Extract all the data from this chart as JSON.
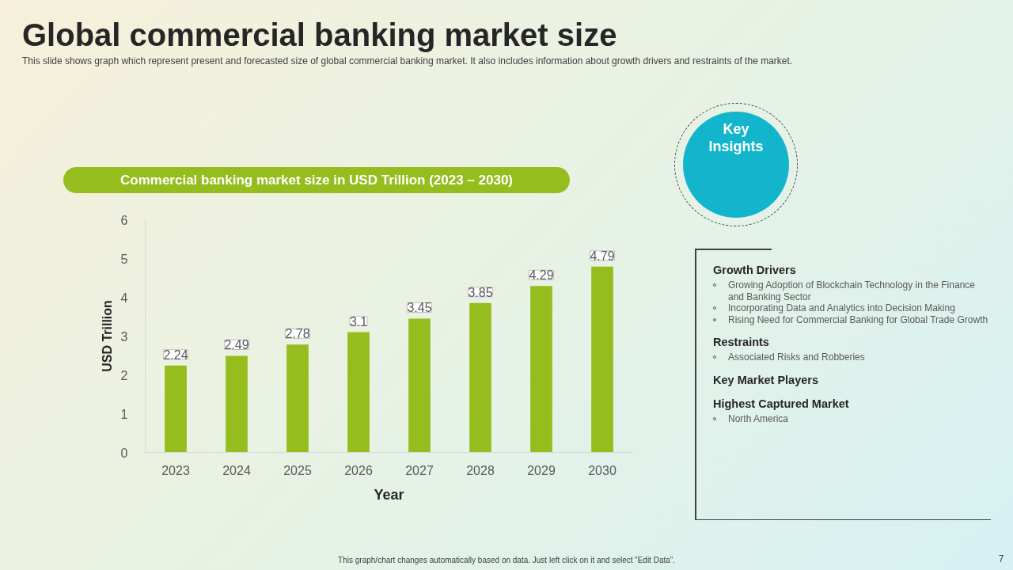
{
  "chart_data": {
    "type": "bar",
    "title": "Global commercial banking market size",
    "subtitle": "This slide shows graph which represent present and forecasted size of global commercial banking market. It also includes information about growth drivers and restraints of the market.",
    "xlabel": "Year",
    "ylabel": "USD Trillion",
    "categories": [
      "2023",
      "2024",
      "2025",
      "2026",
      "2027",
      "2028",
      "2029",
      "2030"
    ],
    "values": [
      2.24,
      2.49,
      2.78,
      3.1,
      3.45,
      3.85,
      4.29,
      4.79
    ],
    "color": "#95bd1d",
    "ylim": [
      0,
      6
    ],
    "yticks": [
      0,
      1,
      2,
      3,
      4,
      5,
      6
    ],
    "grid": false,
    "data_labels": true,
    "annotations": [
      "Commercial banking market size in USD Trillion (2023 – 2030)",
      "Key Insights",
      "Growth Drivers",
      "Growing Adoption of Blockchain Technology in the Finance and Banking Sector",
      "Incorporating Data and Analytics into Decision Making",
      "Rising Need for Commercial Banking for Global Trade Growth",
      "Restraints",
      "Associated Risks and Robberies",
      "Key Market Players",
      "Highest Captured Market",
      "North America",
      "This graph/chart changes automatically based on data. Just left click on it and select “Edit Data”.",
      "7"
    ]
  }
}
